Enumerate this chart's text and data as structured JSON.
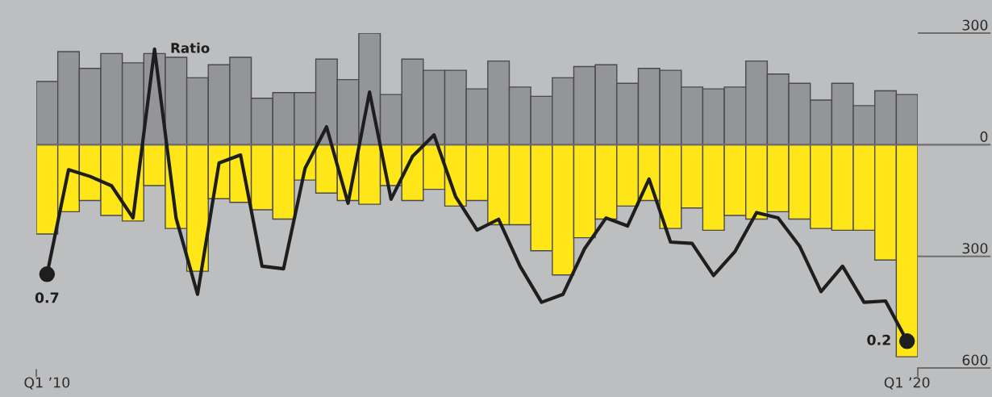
{
  "chart_data": {
    "type": "bar",
    "categories": [
      "Q1 ’10",
      null,
      null,
      null,
      null,
      null,
      null,
      null,
      null,
      null,
      null,
      null,
      null,
      null,
      null,
      null,
      null,
      null,
      null,
      null,
      null,
      null,
      null,
      null,
      null,
      null,
      null,
      null,
      null,
      null,
      null,
      null,
      null,
      null,
      null,
      null,
      null,
      null,
      null,
      null,
      "Q1 ’20"
    ],
    "series": [
      {
        "color": "#939598",
        "values": [
          170,
          250,
          205,
          245,
          220,
          245,
          235,
          180,
          215,
          235,
          125,
          140,
          140,
          230,
          175,
          300,
          135,
          230,
          200,
          200,
          150,
          225,
          155,
          130,
          180,
          210,
          215,
          165,
          205,
          200,
          155,
          150,
          155,
          225,
          190,
          165,
          120,
          165,
          105,
          145,
          135
        ]
      },
      {
        "color": "#ffe619",
        "values": [
          -240,
          -180,
          -150,
          -190,
          -205,
          -110,
          -225,
          -340,
          -145,
          -155,
          -175,
          -200,
          -95,
          -130,
          -150,
          -160,
          -110,
          -150,
          -120,
          -165,
          -150,
          -215,
          -215,
          -285,
          -350,
          -250,
          -200,
          -165,
          -150,
          -225,
          -170,
          -230,
          -190,
          -200,
          -180,
          -200,
          -225,
          -230,
          -230,
          -310,
          -570
        ]
      },
      {
        "type": "line",
        "name": "Ratio",
        "color": "#1e1e1e",
        "axis": "y2",
        "values": [
          0.7,
          1.48,
          1.43,
          1.36,
          1.12,
          2.38,
          1.12,
          0.55,
          1.53,
          1.59,
          0.76,
          0.74,
          1.49,
          1.8,
          1.23,
          2.06,
          1.26,
          1.58,
          1.74,
          1.28,
          1.03,
          1.11,
          0.76,
          0.49,
          0.55,
          0.89,
          1.12,
          1.06,
          1.41,
          0.94,
          0.93,
          0.69,
          0.87,
          1.16,
          1.12,
          0.91,
          0.57,
          0.76,
          0.49,
          0.5,
          0.2
        ],
        "value_labels": [
          "0.7",
          null,
          null,
          null,
          null,
          null,
          null,
          null,
          null,
          null,
          null,
          null,
          null,
          null,
          null,
          null,
          null,
          null,
          null,
          null,
          null,
          null,
          null,
          null,
          null,
          null,
          null,
          null,
          null,
          null,
          null,
          null,
          null,
          null,
          null,
          null,
          null,
          null,
          null,
          null,
          "0.2"
        ]
      }
    ],
    "stacked": true,
    "ylim": [
      -600,
      300
    ],
    "yticks": [
      {
        "value": -600,
        "label": "600"
      },
      {
        "value": -300,
        "label": "300"
      },
      0,
      300
    ],
    "y2lim": [
      0,
      2.5
    ]
  }
}
